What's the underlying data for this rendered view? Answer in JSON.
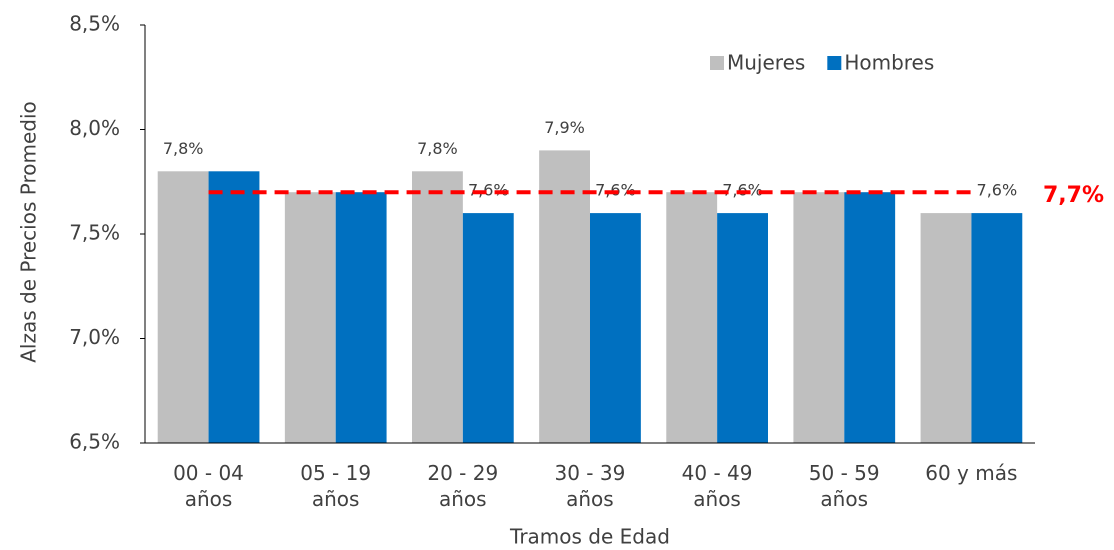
{
  "chart_data": {
    "type": "bar",
    "y_label": "Alzas de Precios Promedio",
    "x_label": "Tramos de Edad",
    "categories": [
      "00 - 04\naños",
      "05 - 19\naños",
      "20 - 29\naños",
      "30 - 39\naños",
      "40 - 49\naños",
      "50 - 59\naños",
      "60 y más"
    ],
    "series": [
      {
        "name": "Mujeres",
        "color": "#bfbfbf",
        "values": [
          7.8,
          7.7,
          7.8,
          7.9,
          7.7,
          7.7,
          7.6
        ],
        "value_labels": [
          "7,8%",
          null,
          "7,8%",
          "7,9%",
          null,
          null,
          null
        ]
      },
      {
        "name": "Hombres",
        "color": "#0070c0",
        "values": [
          7.8,
          7.7,
          7.6,
          7.6,
          7.6,
          7.7,
          7.6
        ],
        "value_labels": [
          null,
          null,
          "7,6%",
          "7,6%",
          "7,6%",
          null,
          "7,6%"
        ]
      }
    ],
    "ylim": [
      6.5,
      8.5
    ],
    "yticks": [
      {
        "value": 6.5,
        "label": "6,5%"
      },
      {
        "value": 7.0,
        "label": "7,0%"
      },
      {
        "value": 7.5,
        "label": "7,5%"
      },
      {
        "value": 8.0,
        "label": "8,0%"
      },
      {
        "value": 8.5,
        "label": "8,5%"
      }
    ],
    "reference_line": {
      "value": 7.7,
      "label": "7,7%",
      "color": "#ff0000"
    },
    "legend": "top-right"
  }
}
